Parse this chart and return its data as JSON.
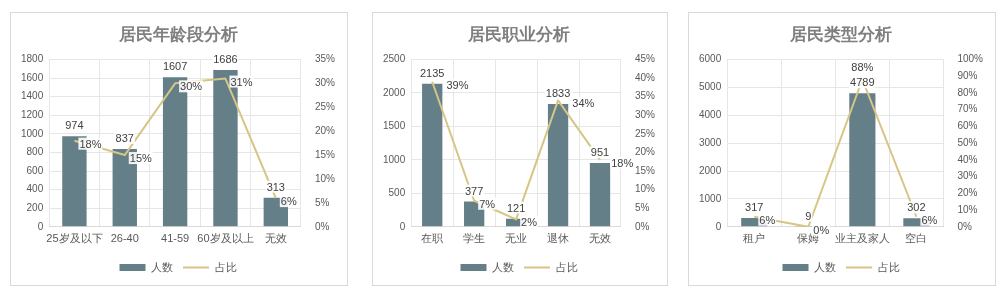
{
  "chart_data": [
    {
      "type": "bar",
      "title": "居民年龄段分析",
      "categories": [
        "25岁及以下",
        "26-40",
        "41-59",
        "60岁及以上",
        "无效"
      ],
      "legend": "bottom",
      "grid": true,
      "marker": "none",
      "ylim": [
        0,
        1800
      ],
      "yticks": [
        0,
        200,
        400,
        600,
        800,
        1000,
        1200,
        1400,
        1600,
        1800
      ],
      "y2lim": [
        0,
        35
      ],
      "y2ticks": [
        {
          "value": 0,
          "label": "0%"
        },
        {
          "value": 5,
          "label": "5%"
        },
        {
          "value": 10,
          "label": "10%"
        },
        {
          "value": 15,
          "label": "15%"
        },
        {
          "value": 20,
          "label": "20%"
        },
        {
          "value": 25,
          "label": "25%"
        },
        {
          "value": 30,
          "label": "30%"
        },
        {
          "value": 35,
          "label": "35%"
        }
      ],
      "series": [
        {
          "name": "人数",
          "type": "bar",
          "color": "#647f87",
          "values": [
            974,
            837,
            1607,
            1686,
            313
          ],
          "value_labels": [
            "974",
            "837",
            "1607",
            "1686",
            "313"
          ]
        },
        {
          "name": "占比",
          "type": "line",
          "axis": "y2",
          "color": "#d6c584",
          "values": [
            18,
            15,
            30,
            31,
            6
          ],
          "value_labels": [
            "18%",
            "15%",
            "30%",
            "31%",
            "6%"
          ]
        }
      ]
    },
    {
      "type": "bar",
      "title": "居民职业分析",
      "categories": [
        "在职",
        "学生",
        "无业",
        "退休",
        "无效"
      ],
      "legend": "bottom",
      "grid": true,
      "marker": "none",
      "ylim": [
        0,
        2500
      ],
      "yticks": [
        0,
        500,
        1000,
        1500,
        2000,
        2500
      ],
      "y2lim": [
        0,
        45
      ],
      "y2ticks": [
        {
          "value": 0,
          "label": "0%"
        },
        {
          "value": 5,
          "label": "5%"
        },
        {
          "value": 10,
          "label": "10%"
        },
        {
          "value": 15,
          "label": "15%"
        },
        {
          "value": 20,
          "label": "20%"
        },
        {
          "value": 25,
          "label": "25%"
        },
        {
          "value": 30,
          "label": "30%"
        },
        {
          "value": 35,
          "label": "35%"
        },
        {
          "value": 40,
          "label": "40%"
        },
        {
          "value": 45,
          "label": "45%"
        }
      ],
      "series": [
        {
          "name": "人数",
          "type": "bar",
          "color": "#647f87",
          "values": [
            2135,
            377,
            121,
            1833,
            951
          ],
          "value_labels": [
            "2135",
            "377",
            "121",
            "1833",
            "951"
          ]
        },
        {
          "name": "占比",
          "type": "line",
          "axis": "y2",
          "color": "#d6c584",
          "values": [
            39,
            7,
            2,
            34,
            18
          ],
          "value_labels": [
            "39%",
            "7%",
            "2%",
            "34%",
            "18%"
          ]
        }
      ]
    },
    {
      "type": "bar",
      "title": "居民类型分析",
      "categories": [
        "租户",
        "保姆",
        "业主及家人",
        "空白"
      ],
      "legend": "bottom",
      "grid": true,
      "marker": "none",
      "ylim": [
        0,
        6000
      ],
      "yticks": [
        0,
        1000,
        2000,
        3000,
        4000,
        5000,
        6000
      ],
      "y2lim": [
        0,
        100
      ],
      "y2ticks": [
        {
          "value": 0,
          "label": "0%"
        },
        {
          "value": 10,
          "label": "10%"
        },
        {
          "value": 20,
          "label": "20%"
        },
        {
          "value": 30,
          "label": "30%"
        },
        {
          "value": 40,
          "label": "40%"
        },
        {
          "value": 50,
          "label": "50%"
        },
        {
          "value": 60,
          "label": "60%"
        },
        {
          "value": 70,
          "label": "70%"
        },
        {
          "value": 80,
          "label": "80%"
        },
        {
          "value": 90,
          "label": "90%"
        },
        {
          "value": 100,
          "label": "100%"
        }
      ],
      "series": [
        {
          "name": "人数",
          "type": "bar",
          "color": "#647f87",
          "values": [
            317,
            9,
            4789,
            302
          ],
          "value_labels": [
            "317",
            "9",
            "4789",
            "302"
          ]
        },
        {
          "name": "占比",
          "type": "line",
          "axis": "y2",
          "color": "#d6c584",
          "values": [
            6,
            0,
            88,
            6
          ],
          "value_labels": [
            "6%",
            "0%",
            "88%",
            "6%"
          ]
        }
      ]
    }
  ]
}
